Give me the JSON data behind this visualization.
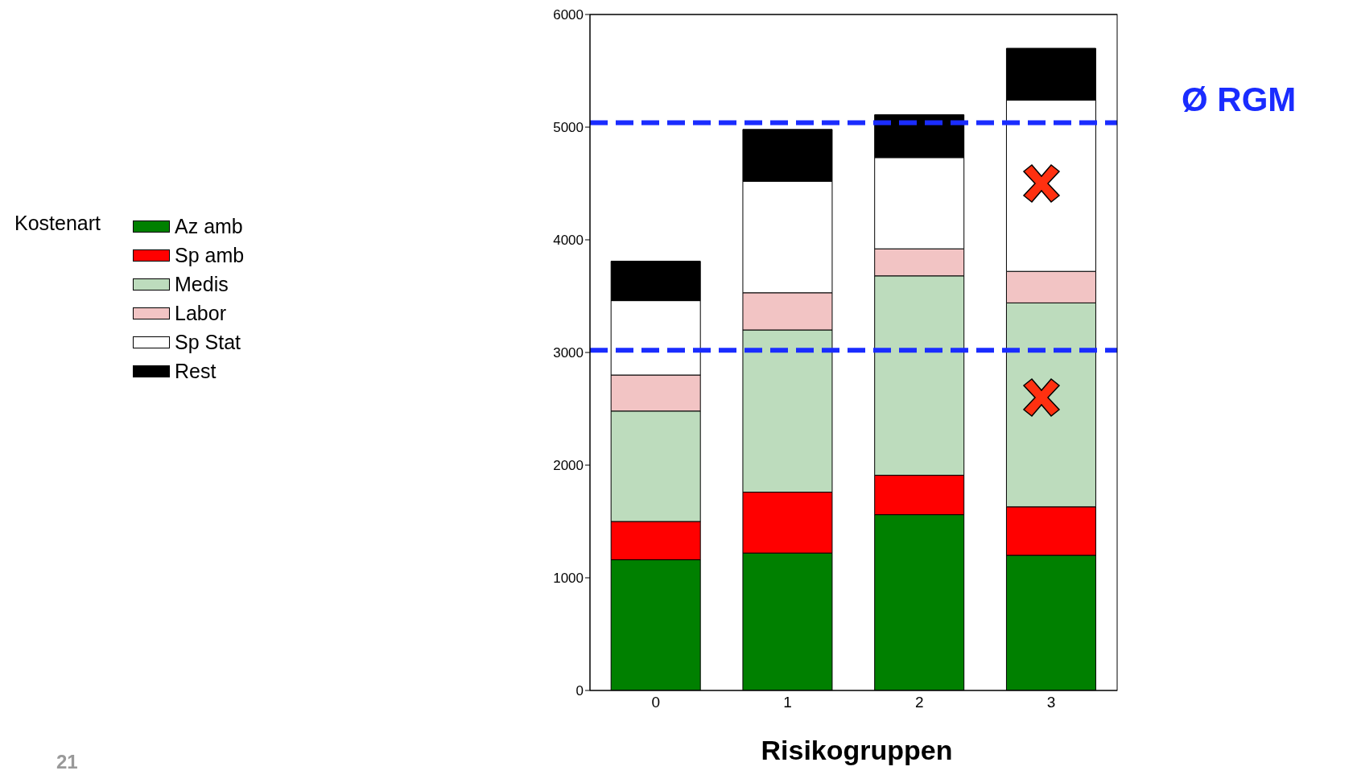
{
  "chart_data": {
    "type": "bar",
    "stacked": true,
    "xlabel": "Risikogruppen",
    "legend_title": "Kostenart",
    "legend": "left",
    "categories": [
      "0",
      "1",
      "2",
      "3"
    ],
    "series": [
      {
        "name": "Az amb",
        "color": "#008000",
        "values": [
          1160,
          1220,
          1560,
          1200
        ]
      },
      {
        "name": "Sp amb",
        "color": "#ff0000",
        "values": [
          340,
          540,
          350,
          430
        ]
      },
      {
        "name": "Medis",
        "color": "#bddcbd",
        "values": [
          980,
          1440,
          1770,
          1810
        ]
      },
      {
        "name": "Labor",
        "color": "#f2c4c4",
        "values": [
          320,
          330,
          240,
          280
        ]
      },
      {
        "name": "Sp Stat",
        "color": "#ffffff",
        "values": [
          660,
          990,
          810,
          1520
        ]
      },
      {
        "name": "Rest",
        "color": "#000000",
        "values": [
          350,
          460,
          380,
          460
        ]
      }
    ],
    "ylim": [
      0,
      6000
    ],
    "yticks": [
      0,
      1000,
      2000,
      3000,
      4000,
      5000,
      6000
    ],
    "ref_lines": [
      {
        "axis": "y",
        "value": 5040,
        "label": "Ø RGM",
        "color": "#1a2cff",
        "line_style": "dashed"
      },
      {
        "axis": "y",
        "value": 3020,
        "color": "#1a2cff",
        "line_style": "dashed"
      }
    ],
    "annotations": [
      "21"
    ]
  }
}
